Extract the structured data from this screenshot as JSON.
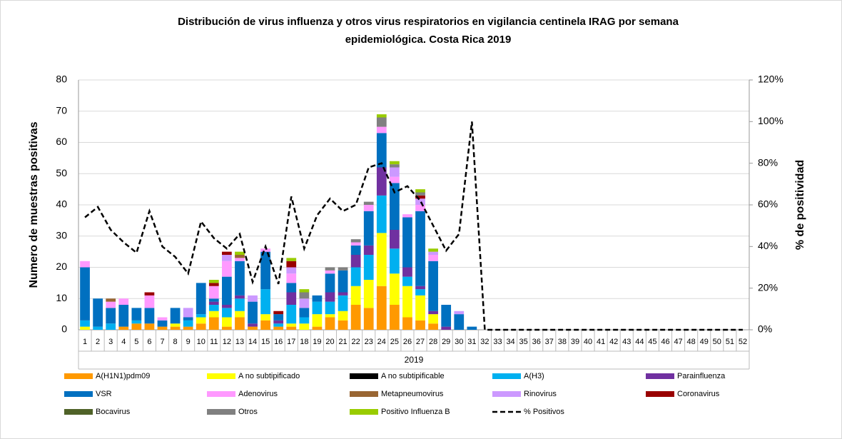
{
  "chart_data": {
    "type": "stacked-bar-line",
    "title": [
      "Distribución de virus influenza y otros virus respiratorios en vigilancia centinela IRAG por semana",
      "epidemiológica. Costa Rica 2019"
    ],
    "y_label": "Numero de muestras positivas",
    "y2_label": "% de positividad",
    "x_label": "2019",
    "categories": [
      "1",
      "2",
      "3",
      "4",
      "5",
      "6",
      "7",
      "8",
      "9",
      "10",
      "11",
      "12",
      "13",
      "14",
      "15",
      "16",
      "17",
      "18",
      "19",
      "20",
      "21",
      "22",
      "23",
      "24",
      "25",
      "26",
      "27",
      "28",
      "29",
      "30",
      "31",
      "32",
      "33",
      "34",
      "35",
      "36",
      "37",
      "38",
      "39",
      "40",
      "41",
      "42",
      "43",
      "44",
      "45",
      "46",
      "47",
      "48",
      "49",
      "50",
      "51",
      "52"
    ],
    "ylim": [
      0,
      80
    ],
    "yticks": [
      0,
      10,
      20,
      30,
      40,
      50,
      60,
      70,
      80
    ],
    "y2lim": [
      0,
      120
    ],
    "y2ticks": [
      {
        "value": 0,
        "label": "0%"
      },
      {
        "value": 20,
        "label": "20%"
      },
      {
        "value": 40,
        "label": "40%"
      },
      {
        "value": 60,
        "label": "60%"
      },
      {
        "value": 80,
        "label": "80%"
      },
      {
        "value": 100,
        "label": "100%"
      },
      {
        "value": 120,
        "label": "120%"
      }
    ],
    "grid": true,
    "legend": "bottom",
    "series": [
      {
        "name": "A(H1N1)pdm09",
        "color": "#ff9900",
        "values": [
          0,
          0,
          0,
          1,
          2,
          2,
          1,
          1,
          1,
          2,
          4,
          1,
          4,
          1,
          3,
          1,
          1,
          0,
          1,
          4,
          3,
          8,
          7,
          14,
          8,
          4,
          3,
          2,
          0,
          0,
          0,
          0,
          0,
          0,
          0,
          0,
          0,
          0,
          0,
          0,
          0,
          0,
          0,
          0,
          0,
          0,
          0,
          0,
          0,
          0,
          0,
          0
        ]
      },
      {
        "name": "A no subtipificado",
        "color": "#ffff00",
        "values": [
          1,
          0,
          0,
          0,
          0,
          0,
          0,
          1,
          0,
          2,
          2,
          3,
          2,
          0,
          2,
          0,
          1,
          2,
          4,
          1,
          3,
          6,
          9,
          17,
          10,
          10,
          8,
          3,
          0,
          0,
          0,
          0,
          0,
          0,
          0,
          0,
          0,
          0,
          0,
          0,
          0,
          0,
          0,
          0,
          0,
          0,
          0,
          0,
          0,
          0,
          0,
          0
        ]
      },
      {
        "name": "A no subtipificable",
        "color": "#000000",
        "values": [
          0,
          0,
          0,
          0,
          0,
          0,
          0,
          0,
          0,
          0,
          0,
          0,
          0,
          0,
          0,
          0,
          0,
          0,
          0,
          0,
          0,
          0,
          0,
          0,
          0,
          0,
          0,
          0,
          0,
          0,
          0,
          0,
          0,
          0,
          0,
          0,
          0,
          0,
          0,
          0,
          0,
          0,
          0,
          0,
          0,
          0,
          0,
          0,
          0,
          0,
          0,
          0
        ]
      },
      {
        "name": "A(H3)",
        "color": "#00b0f0",
        "values": [
          2,
          1,
          2,
          0,
          1,
          0,
          0,
          0,
          2,
          1,
          2,
          3,
          4,
          0,
          8,
          1,
          6,
          2,
          4,
          4,
          5,
          6,
          8,
          12,
          8,
          3,
          2,
          0,
          0,
          0,
          0,
          0,
          0,
          0,
          0,
          0,
          0,
          0,
          0,
          0,
          0,
          0,
          0,
          0,
          0,
          0,
          0,
          0,
          0,
          0,
          0,
          0
        ]
      },
      {
        "name": "Parainfluenza",
        "color": "#7030a0",
        "values": [
          0,
          0,
          0,
          0,
          0,
          0,
          0,
          0,
          0,
          0,
          1,
          1,
          1,
          1,
          0,
          1,
          4,
          0,
          0,
          3,
          1,
          4,
          3,
          9,
          6,
          3,
          1,
          1,
          1,
          0,
          0,
          0,
          0,
          0,
          0,
          0,
          0,
          0,
          0,
          0,
          0,
          0,
          0,
          0,
          0,
          0,
          0,
          0,
          0,
          0,
          0,
          0
        ]
      },
      {
        "name": "VSR",
        "color": "#0070c0",
        "values": [
          17,
          9,
          5,
          7,
          4,
          5,
          2,
          5,
          1,
          10,
          1,
          9,
          11,
          7,
          12,
          2,
          3,
          3,
          2,
          6,
          7,
          3,
          11,
          11,
          15,
          16,
          24,
          16,
          7,
          5,
          1,
          0,
          0,
          0,
          0,
          0,
          0,
          0,
          0,
          0,
          0,
          0,
          0,
          0,
          0,
          0,
          0,
          0,
          0,
          0,
          0,
          0
        ]
      },
      {
        "name": "Adenovirus",
        "color": "#ff99ff",
        "values": [
          2,
          0,
          2,
          2,
          0,
          4,
          1,
          0,
          0,
          0,
          4,
          5,
          1,
          0,
          1,
          0,
          3,
          0,
          0,
          1,
          0,
          1,
          2,
          2,
          2,
          1,
          2,
          2,
          0,
          0,
          0,
          0,
          0,
          0,
          0,
          0,
          0,
          0,
          0,
          0,
          0,
          0,
          0,
          0,
          0,
          0,
          0,
          0,
          0,
          0,
          0,
          0
        ]
      },
      {
        "name": "Metapneumovirus",
        "color": "#996633",
        "values": [
          0,
          0,
          1,
          0,
          0,
          0,
          0,
          0,
          0,
          0,
          0,
          0,
          1,
          0,
          0,
          0,
          0,
          0,
          0,
          0,
          0,
          0,
          0,
          0,
          0,
          0,
          0,
          0,
          0,
          0,
          0,
          0,
          0,
          0,
          0,
          0,
          0,
          0,
          0,
          0,
          0,
          0,
          0,
          0,
          0,
          0,
          0,
          0,
          0,
          0,
          0,
          0
        ]
      },
      {
        "name": "Rinovirus",
        "color": "#cc99ff",
        "values": [
          0,
          0,
          0,
          0,
          0,
          0,
          0,
          0,
          3,
          0,
          0,
          2,
          0,
          2,
          0,
          0,
          2,
          3,
          0,
          0,
          0,
          0,
          0,
          0,
          3,
          0,
          2,
          1,
          0,
          1,
          0,
          0,
          0,
          0,
          0,
          0,
          0,
          0,
          0,
          0,
          0,
          0,
          0,
          0,
          0,
          0,
          0,
          0,
          0,
          0,
          0,
          0
        ]
      },
      {
        "name": "Coronavirus",
        "color": "#990000",
        "values": [
          0,
          0,
          0,
          0,
          0,
          1,
          0,
          0,
          0,
          0,
          1,
          1,
          0,
          0,
          0,
          1,
          2,
          0,
          0,
          0,
          0,
          0,
          0,
          0,
          0,
          0,
          1,
          0,
          0,
          0,
          0,
          0,
          0,
          0,
          0,
          0,
          0,
          0,
          0,
          0,
          0,
          0,
          0,
          0,
          0,
          0,
          0,
          0,
          0,
          0,
          0,
          0
        ]
      },
      {
        "name": "Bocavirus",
        "color": "#4f6228",
        "values": [
          0,
          0,
          0,
          0,
          0,
          0,
          0,
          0,
          0,
          0,
          0,
          0,
          0,
          0,
          0,
          0,
          0,
          0,
          0,
          0,
          0,
          0,
          0,
          0,
          0,
          0,
          0,
          0,
          0,
          0,
          0,
          0,
          0,
          0,
          0,
          0,
          0,
          0,
          0,
          0,
          0,
          0,
          0,
          0,
          0,
          0,
          0,
          0,
          0,
          0,
          0,
          0
        ]
      },
      {
        "name": "Otros",
        "color": "#808080",
        "values": [
          0,
          0,
          0,
          0,
          0,
          0,
          0,
          0,
          0,
          0,
          0,
          0,
          0,
          0,
          0,
          0,
          0,
          2,
          0,
          1,
          1,
          1,
          1,
          3,
          1,
          0,
          1,
          0,
          0,
          0,
          0,
          0,
          0,
          0,
          0,
          0,
          0,
          0,
          0,
          0,
          0,
          0,
          0,
          0,
          0,
          0,
          0,
          0,
          0,
          0,
          0,
          0
        ]
      },
      {
        "name": "Positivo Influenza  B",
        "color": "#99cc00",
        "values": [
          0,
          0,
          0,
          0,
          0,
          0,
          0,
          0,
          0,
          0,
          1,
          0,
          1,
          0,
          0,
          0,
          1,
          1,
          0,
          0,
          0,
          0,
          0,
          1,
          1,
          0,
          1,
          1,
          0,
          0,
          0,
          0,
          0,
          0,
          0,
          0,
          0,
          0,
          0,
          0,
          0,
          0,
          0,
          0,
          0,
          0,
          0,
          0,
          0,
          0,
          0,
          0
        ]
      },
      {
        "name": "% Positivos",
        "color": "#000000",
        "type": "line",
        "dash": true,
        "axis": "y2",
        "values": [
          54,
          59,
          48,
          42,
          37,
          57,
          40,
          35,
          27,
          52,
          44,
          39,
          46,
          23,
          40,
          22,
          64,
          39,
          55,
          63,
          57,
          60,
          78,
          80,
          66,
          69,
          62,
          50,
          38,
          46,
          100,
          0,
          0,
          0,
          0,
          0,
          0,
          0,
          0,
          0,
          0,
          0,
          0,
          0,
          0,
          0,
          0,
          0,
          0,
          0,
          0,
          0
        ]
      }
    ]
  }
}
